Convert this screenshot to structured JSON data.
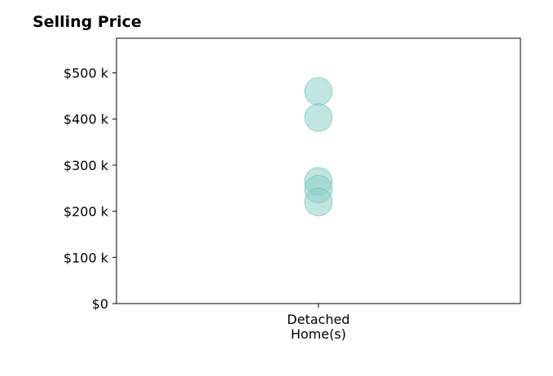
{
  "chart_data": {
    "type": "scatter",
    "title": "Selling Price",
    "categories": [
      "Detached Home(s)"
    ],
    "category_label_lines": [
      "Detached",
      "Home(s)"
    ],
    "series": [
      {
        "category": "Detached Home(s)",
        "values": [
          460000,
          403000,
          265000,
          248000,
          220000
        ]
      }
    ],
    "ylim": [
      0,
      575000
    ],
    "yticks": [
      0,
      100000,
      200000,
      300000,
      400000,
      500000
    ],
    "ytick_labels": [
      "$0",
      "$100 k",
      "$200 k",
      "$300 k",
      "$400 k",
      "$500 k"
    ],
    "xlabel": "",
    "ylabel": "",
    "grid": false,
    "marker_color": "#8ecfc9",
    "marker_edge_color": "#6cbdb6"
  }
}
